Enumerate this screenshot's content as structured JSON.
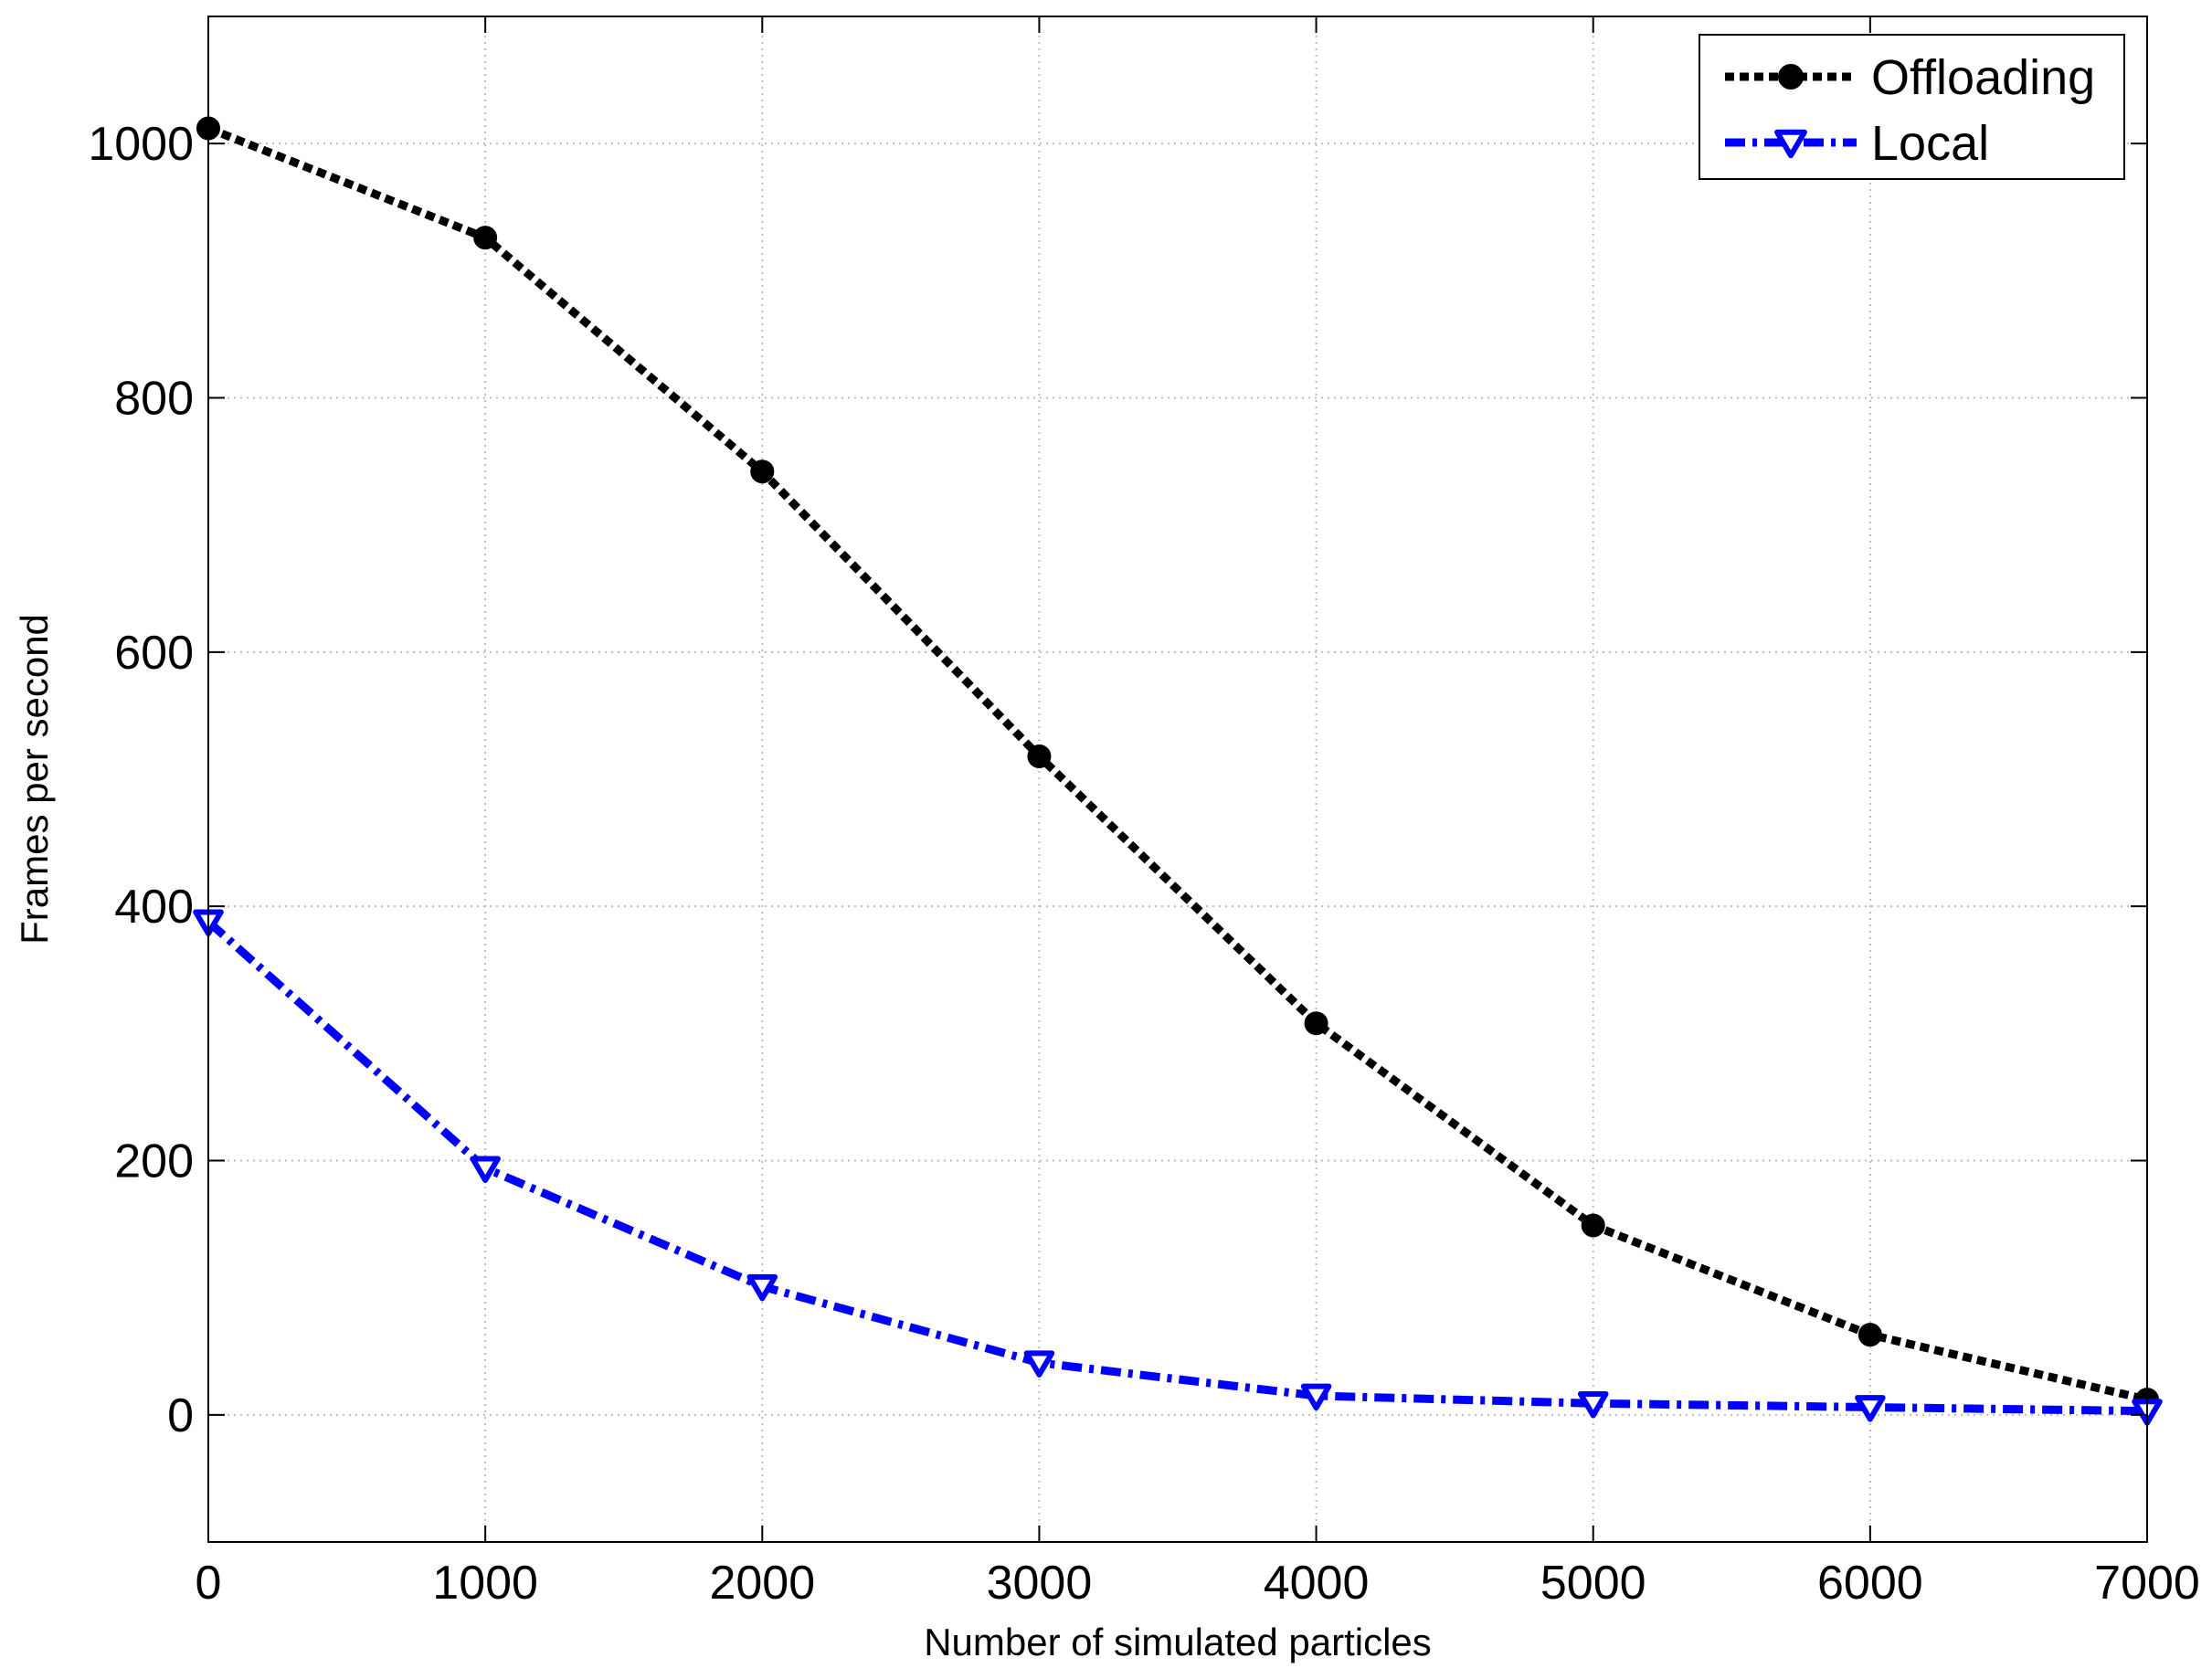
{
  "chart_data": {
    "type": "line",
    "title": "",
    "xlabel": "Number of simulated particles",
    "ylabel": "Frames per second",
    "xlim": [
      0,
      7000
    ],
    "ylim": [
      -100,
      1100
    ],
    "xticks": [
      0,
      1000,
      2000,
      3000,
      4000,
      5000,
      6000,
      7000
    ],
    "yticks": [
      0,
      200,
      400,
      600,
      800,
      1000
    ],
    "x": [
      0,
      1000,
      2000,
      3000,
      4000,
      5000,
      6000,
      7000
    ],
    "grid": true,
    "legend_position": "top-right",
    "series": [
      {
        "name": "Offloading",
        "color": "#000000",
        "marker": "circle",
        "line_style": "dotted",
        "values": [
          1012,
          926,
          742,
          518,
          308,
          149,
          63,
          12
        ]
      },
      {
        "name": "Local",
        "color": "#0000ff",
        "marker": "triangle-down",
        "line_style": "dash-dot",
        "values": [
          388,
          194,
          101,
          41,
          15,
          9,
          6,
          3
        ]
      }
    ]
  }
}
